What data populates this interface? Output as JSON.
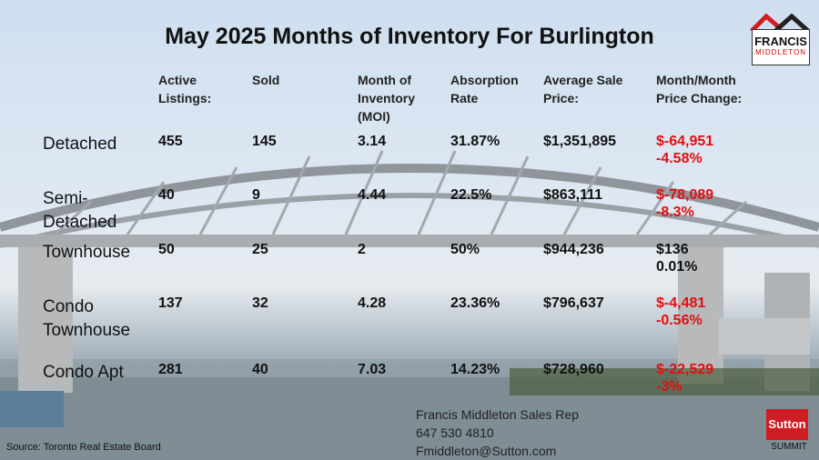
{
  "title": "May 2025 Months of Inventory For Burlington",
  "headers": {
    "active": [
      "Active",
      "Listings:"
    ],
    "sold": [
      "Sold"
    ],
    "moi": [
      "Month of",
      "Inventory",
      "(MOI)"
    ],
    "absorption": [
      "Absorption",
      "Rate"
    ],
    "avg_price": [
      "Average Sale",
      "Price:"
    ],
    "change": [
      "Month/Month",
      "Price Change:"
    ]
  },
  "rows": [
    {
      "label": [
        "Detached"
      ],
      "active": "455",
      "sold": "145",
      "moi": "3.14",
      "absorption": "31.87%",
      "avg_price": "$1,351,895",
      "change_amount": "$-64,951",
      "change_pct": "-4.58%",
      "negative": true
    },
    {
      "label": [
        "Semi-",
        "Detached"
      ],
      "active": "40",
      "sold": "9",
      "moi": "4.44",
      "absorption": "22.5%",
      "avg_price": "$863,111",
      "change_amount": "$-78,089",
      "change_pct": "-8.3%",
      "negative": true
    },
    {
      "label": [
        "Townhouse"
      ],
      "active": "50",
      "sold": "25",
      "moi": "2",
      "absorption": "50%",
      "avg_price": "$944,236",
      "change_amount": "$136",
      "change_pct": "0.01%",
      "negative": false
    },
    {
      "label": [
        "Condo",
        "Townhouse"
      ],
      "active": "137",
      "sold": "32",
      "moi": "4.28",
      "absorption": "23.36%",
      "avg_price": "$796,637",
      "change_amount": "$-4,481",
      "change_pct": "-0.56%",
      "negative": true
    },
    {
      "label": [
        "Condo Apt"
      ],
      "active": "281",
      "sold": "40",
      "moi": "7.03",
      "absorption": "14.23%",
      "avg_price": "$728,960",
      "change_amount": "$-22,529",
      "change_pct": "-3%",
      "negative": true
    }
  ],
  "contact": {
    "name": "Francis Middleton Sales Rep",
    "phone": "647 530 4810",
    "email": "Fmiddleton@Sutton.com"
  },
  "source": "Source: Toronto Real Estate Board",
  "logo_francis": {
    "name": "FRANCIS",
    "surname": "MIDDLETON"
  },
  "logo_sutton": {
    "brand": "Sutton",
    "sub": "SUMMIT"
  },
  "colors": {
    "negative": "#e01010",
    "text": "#111111"
  }
}
